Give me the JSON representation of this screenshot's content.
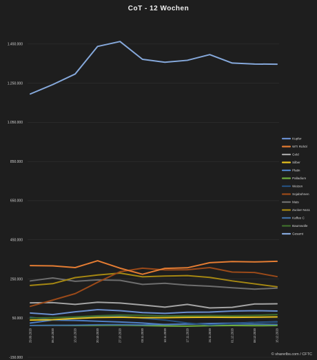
{
  "chart_data": {
    "type": "line",
    "title": "CoT - 12 Wochen",
    "xlabel": "",
    "ylabel": "",
    "ylim": [
      -150000,
      1550000
    ],
    "yticks": [
      -150000,
      50000,
      250000,
      450000,
      650000,
      850000,
      1050000,
      1250000,
      1450000
    ],
    "ytick_labels": [
      "-150.000",
      "50.000",
      "250.000",
      "450.000",
      "650.000",
      "850.000",
      "1.050.000",
      "1.250.000",
      "1.450.000"
    ],
    "grid": true,
    "legend_position": "right",
    "categories": [
      "29.09.2020",
      "06.10.2020",
      "13.10.2020",
      "20.10.2020",
      "27.10.2020",
      "03.11.2020",
      "10.11.2020",
      "17.11.2020",
      "24.11.2020",
      "01.12.2020",
      "08.12.2020",
      "15.12.2020"
    ],
    "series": [
      {
        "name": "Kupfer",
        "color": "#6a8fcf",
        "values": [
          76000,
          68000,
          82000,
          93000,
          88000,
          78000,
          74000,
          80000,
          81000,
          86000,
          88000,
          86000
        ]
      },
      {
        "name": "WTI Rohöl",
        "color": "#e57d33",
        "values": [
          318000,
          317000,
          308000,
          343000,
          305000,
          274000,
          304000,
          307000,
          333000,
          339000,
          337000,
          340000
        ]
      },
      {
        "name": "Gold",
        "color": "#a5a5a5",
        "values": [
          128000,
          129000,
          120000,
          131000,
          127000,
          117000,
          106000,
          120000,
          102000,
          105000,
          122000,
          123000
        ]
      },
      {
        "name": "Silber",
        "color": "#e8c21f",
        "values": [
          40000,
          42000,
          48000,
          53000,
          55000,
          52000,
          52000,
          54000,
          55000,
          54000,
          55000,
          56000
        ]
      },
      {
        "name": "Platin",
        "color": "#4f7fc4",
        "values": [
          25000,
          40000,
          38000,
          34000,
          30000,
          25000,
          17000,
          20000,
          22000,
          24000,
          28000,
          31000
        ]
      },
      {
        "name": "Palladium",
        "color": "#6fae3f",
        "values": [
          12000,
          13000,
          12000,
          13000,
          14000,
          12000,
          10000,
          9000,
          11000,
          12000,
          11000,
          12000
        ]
      },
      {
        "name": "Weizen",
        "color": "#264f7e",
        "values": [
          55000,
          40000,
          50000,
          58000,
          60000,
          50000,
          40000,
          25000,
          15000,
          22000,
          28000,
          30000
        ]
      },
      {
        "name": "Sojabohnen",
        "color": "#9b4a19",
        "values": [
          110000,
          142000,
          175000,
          233000,
          287000,
          305000,
          296000,
          297000,
          308000,
          285000,
          283000,
          262000
        ]
      },
      {
        "name": "Mais",
        "color": "#6e6e6e",
        "values": [
          240000,
          255000,
          238000,
          245000,
          243000,
          222000,
          228000,
          218000,
          213000,
          205000,
          198000,
          203000
        ]
      },
      {
        "name": "Zucker No11",
        "color": "#a68812",
        "values": [
          217000,
          226000,
          257000,
          270000,
          280000,
          261000,
          265000,
          267000,
          258000,
          240000,
          225000,
          210000
        ]
      },
      {
        "name": "Kaffee C",
        "color": "#3f6ea3",
        "values": [
          12000,
          13000,
          14000,
          16000,
          17000,
          15000,
          18000,
          19000,
          20000,
          21000,
          19000,
          18000
        ]
      },
      {
        "name": "Baumwolle",
        "color": "#3f6f2d",
        "values": [
          50000,
          52000,
          56000,
          62000,
          66000,
          64000,
          61000,
          62000,
          63000,
          62000,
          64000,
          68000
        ]
      },
      {
        "name": "Gesamt",
        "color": "#86a9dc",
        "values": [
          1195000,
          1243000,
          1297000,
          1438000,
          1463000,
          1372000,
          1357000,
          1367000,
          1396000,
          1353000,
          1348000,
          1347000
        ]
      }
    ]
  },
  "footer": {
    "credit": "© sharerlbs.com / CFTC",
    "copyright_icon": "copyright-icon"
  }
}
